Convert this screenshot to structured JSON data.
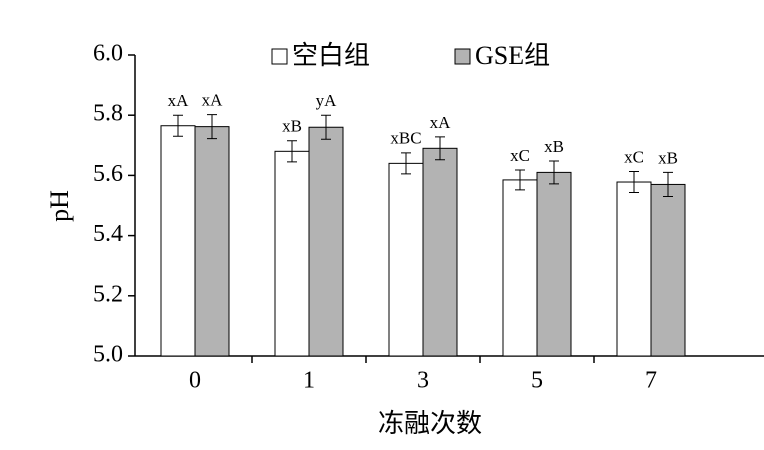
{
  "chart_data": {
    "type": "bar",
    "x_label": "冻融次数",
    "y_label": "pH",
    "categories": [
      "0",
      "1",
      "3",
      "5",
      "7"
    ],
    "series": [
      {
        "name": "空白组",
        "color": "#ffffff",
        "values": [
          5.765,
          5.68,
          5.64,
          5.585,
          5.578
        ],
        "errors": [
          0.035,
          0.035,
          0.035,
          0.033,
          0.035
        ],
        "annotations": [
          "xA",
          "xB",
          "xBC",
          "xC",
          "xC"
        ]
      },
      {
        "name": "GSE组",
        "color": "#b3b3b3",
        "values": [
          5.762,
          5.76,
          5.69,
          5.61,
          5.57
        ],
        "errors": [
          0.04,
          0.04,
          0.038,
          0.038,
          0.04
        ],
        "annotations": [
          "xA",
          "yA",
          "xA",
          "xB",
          "xB"
        ]
      }
    ],
    "ylim": [
      5.0,
      6.0
    ],
    "yticks": [
      {
        "value": 5.0,
        "label": "5.0"
      },
      {
        "value": 5.2,
        "label": "5.2"
      },
      {
        "value": 5.4,
        "label": "5.4"
      },
      {
        "value": 5.6,
        "label": "5.6"
      },
      {
        "value": 5.8,
        "label": "5.8"
      },
      {
        "value": 6.0,
        "label": "6.0"
      }
    ]
  }
}
